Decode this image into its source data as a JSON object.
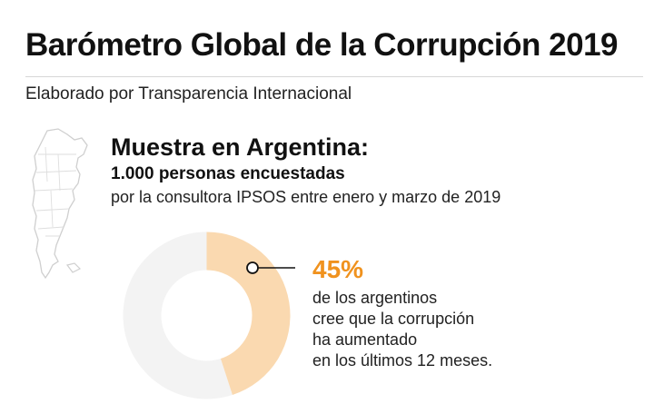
{
  "header": {
    "title": "Barómetro Global de la Corrupción 2019",
    "subtitle": "Elaborado por Transparencia Internacional"
  },
  "sample": {
    "heading": "Muestra en Argentina:",
    "count": "1.000 personas encuestadas",
    "detail": "por la consultora IPSOS entre enero y marzo de 2019"
  },
  "icons": {
    "map": "argentina-map-icon"
  },
  "colors": {
    "accent": "#f0921e",
    "donut_fill": "#fad9b0",
    "donut_rest": "#f3f3f3"
  },
  "chart_data": {
    "type": "pie",
    "values": [
      45,
      55
    ],
    "label": "45%",
    "description_lines": [
      "de los argentinos",
      "cree que la corrupción",
      "ha aumentado",
      "en los últimos 12 meses."
    ]
  }
}
